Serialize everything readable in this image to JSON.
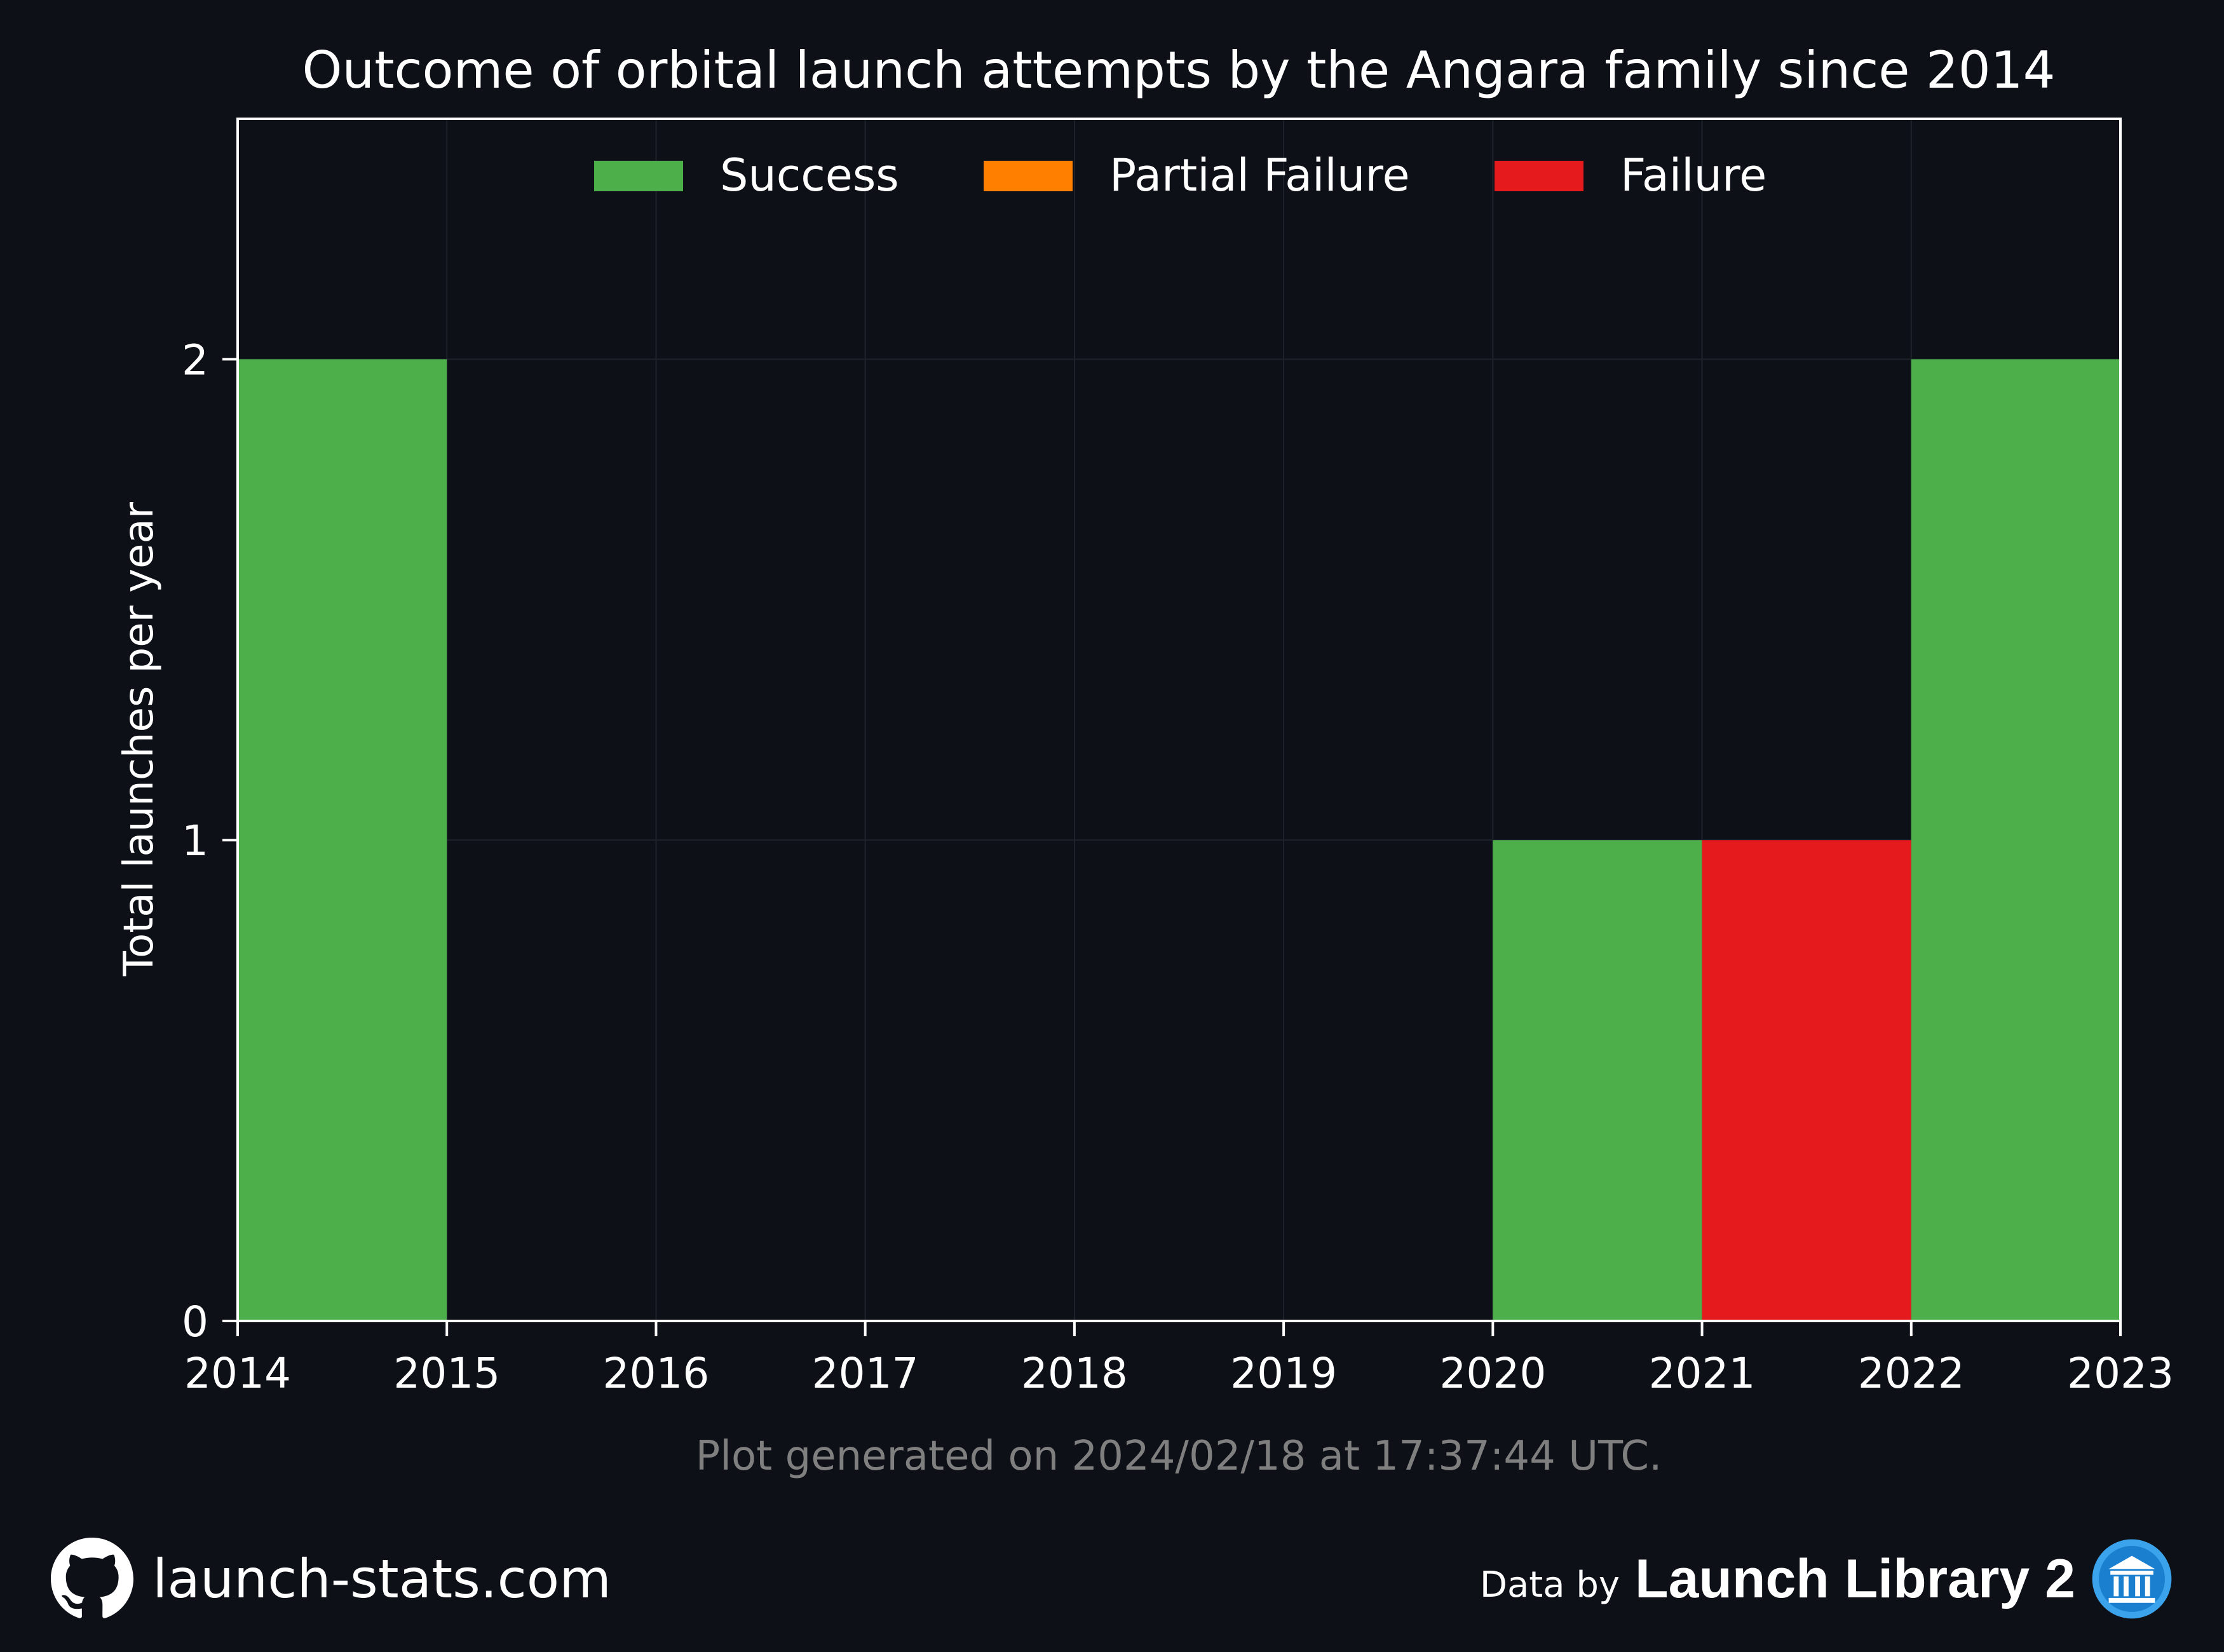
{
  "footer": {
    "generated_note": "Plot generated on 2024/02/18 at 17:37:44 UTC.",
    "site": "launch-stats.com",
    "data_by": "Data by",
    "source": "Launch Library 2",
    "site_icon": "github-icon",
    "source_icon": "library-icon"
  },
  "colors": {
    "background": "#0d1017",
    "success": "#4daf4a",
    "partial_failure": "#ff7f00",
    "failure": "#e41a1c",
    "grid": "#1e232b",
    "axis": "#ffffff",
    "note": "#7f7f7f"
  },
  "chart_data": {
    "type": "bar",
    "stacked": true,
    "title": "Outcome of orbital launch attempts by the Angara family since 2014",
    "xlabel": "",
    "ylabel": "Total launches per year",
    "x_ticks": [
      "2014",
      "2015",
      "2016",
      "2017",
      "2018",
      "2019",
      "2020",
      "2021",
      "2022",
      "2023"
    ],
    "y_ticks": [
      "0",
      "1",
      "2"
    ],
    "xlim": [
      2014,
      2023
    ],
    "ylim": [
      0,
      2.5
    ],
    "grid": true,
    "legend_position": "top-center",
    "bins": [
      {
        "start": 2014,
        "end": 2015
      },
      {
        "start": 2015,
        "end": 2016
      },
      {
        "start": 2016,
        "end": 2017
      },
      {
        "start": 2017,
        "end": 2018
      },
      {
        "start": 2018,
        "end": 2019
      },
      {
        "start": 2019,
        "end": 2020
      },
      {
        "start": 2020,
        "end": 2021
      },
      {
        "start": 2021,
        "end": 2022
      },
      {
        "start": 2022,
        "end": 2023
      }
    ],
    "series": [
      {
        "name": "Success",
        "color": "#4daf4a",
        "values": [
          2,
          0,
          0,
          0,
          0,
          0,
          1,
          0,
          2
        ]
      },
      {
        "name": "Partial Failure",
        "color": "#ff7f00",
        "values": [
          0,
          0,
          0,
          0,
          0,
          0,
          0,
          0,
          0
        ]
      },
      {
        "name": "Failure",
        "color": "#e41a1c",
        "values": [
          0,
          0,
          0,
          0,
          0,
          0,
          0,
          1,
          0
        ]
      }
    ]
  }
}
